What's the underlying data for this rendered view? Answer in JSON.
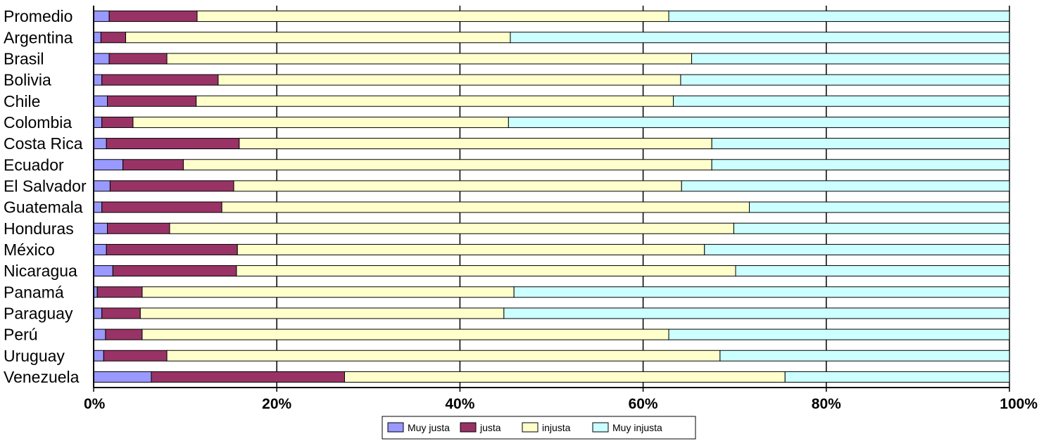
{
  "chart_data": {
    "type": "bar",
    "stacked": true,
    "orientation": "horizontal",
    "normalized": true,
    "title": "",
    "xlabel": "",
    "ylabel": "",
    "xlim": [
      0,
      100
    ],
    "x_ticks": [
      "0%",
      "20%",
      "40%",
      "60%",
      "80%",
      "100%"
    ],
    "grid": "vertical",
    "legend_position": "bottom",
    "categories": [
      "Promedio",
      "Argentina",
      "Brasil",
      "Bolivia",
      "Chile",
      "Colombia",
      "Costa Rica",
      "Ecuador",
      "El Salvador",
      "Guatemala",
      "Honduras",
      "México",
      "Nicaragua",
      "Panamá",
      "Paraguay",
      "Perú",
      "Uruguay",
      "Venezuela"
    ],
    "series": [
      {
        "name": "Muy justa",
        "color": "#9999ff",
        "values": [
          1.7,
          0.8,
          1.7,
          0.9,
          1.5,
          0.9,
          1.4,
          3.2,
          1.8,
          0.9,
          1.5,
          1.4,
          2.1,
          0.4,
          0.9,
          1.3,
          1.1,
          6.3
        ]
      },
      {
        "name": "justa",
        "color": "#993366",
        "values": [
          9.6,
          2.7,
          6.3,
          12.7,
          9.7,
          3.4,
          14.5,
          6.6,
          13.5,
          13.1,
          6.8,
          14.3,
          13.5,
          4.9,
          4.2,
          4.0,
          6.9,
          21.1
        ]
      },
      {
        "name": "injusta",
        "color": "#ffffcc",
        "values": [
          51.5,
          42.0,
          57.3,
          50.5,
          52.1,
          41.0,
          51.6,
          57.7,
          48.9,
          57.6,
          61.6,
          51.0,
          54.5,
          40.6,
          39.7,
          57.5,
          60.4,
          48.1
        ]
      },
      {
        "name": "Muy injusta",
        "color": "#ccffff",
        "values": [
          37.2,
          54.5,
          34.7,
          35.9,
          36.7,
          54.7,
          32.5,
          32.5,
          35.8,
          28.4,
          30.1,
          33.3,
          29.9,
          54.1,
          55.2,
          37.2,
          31.6,
          24.5
        ]
      }
    ]
  }
}
